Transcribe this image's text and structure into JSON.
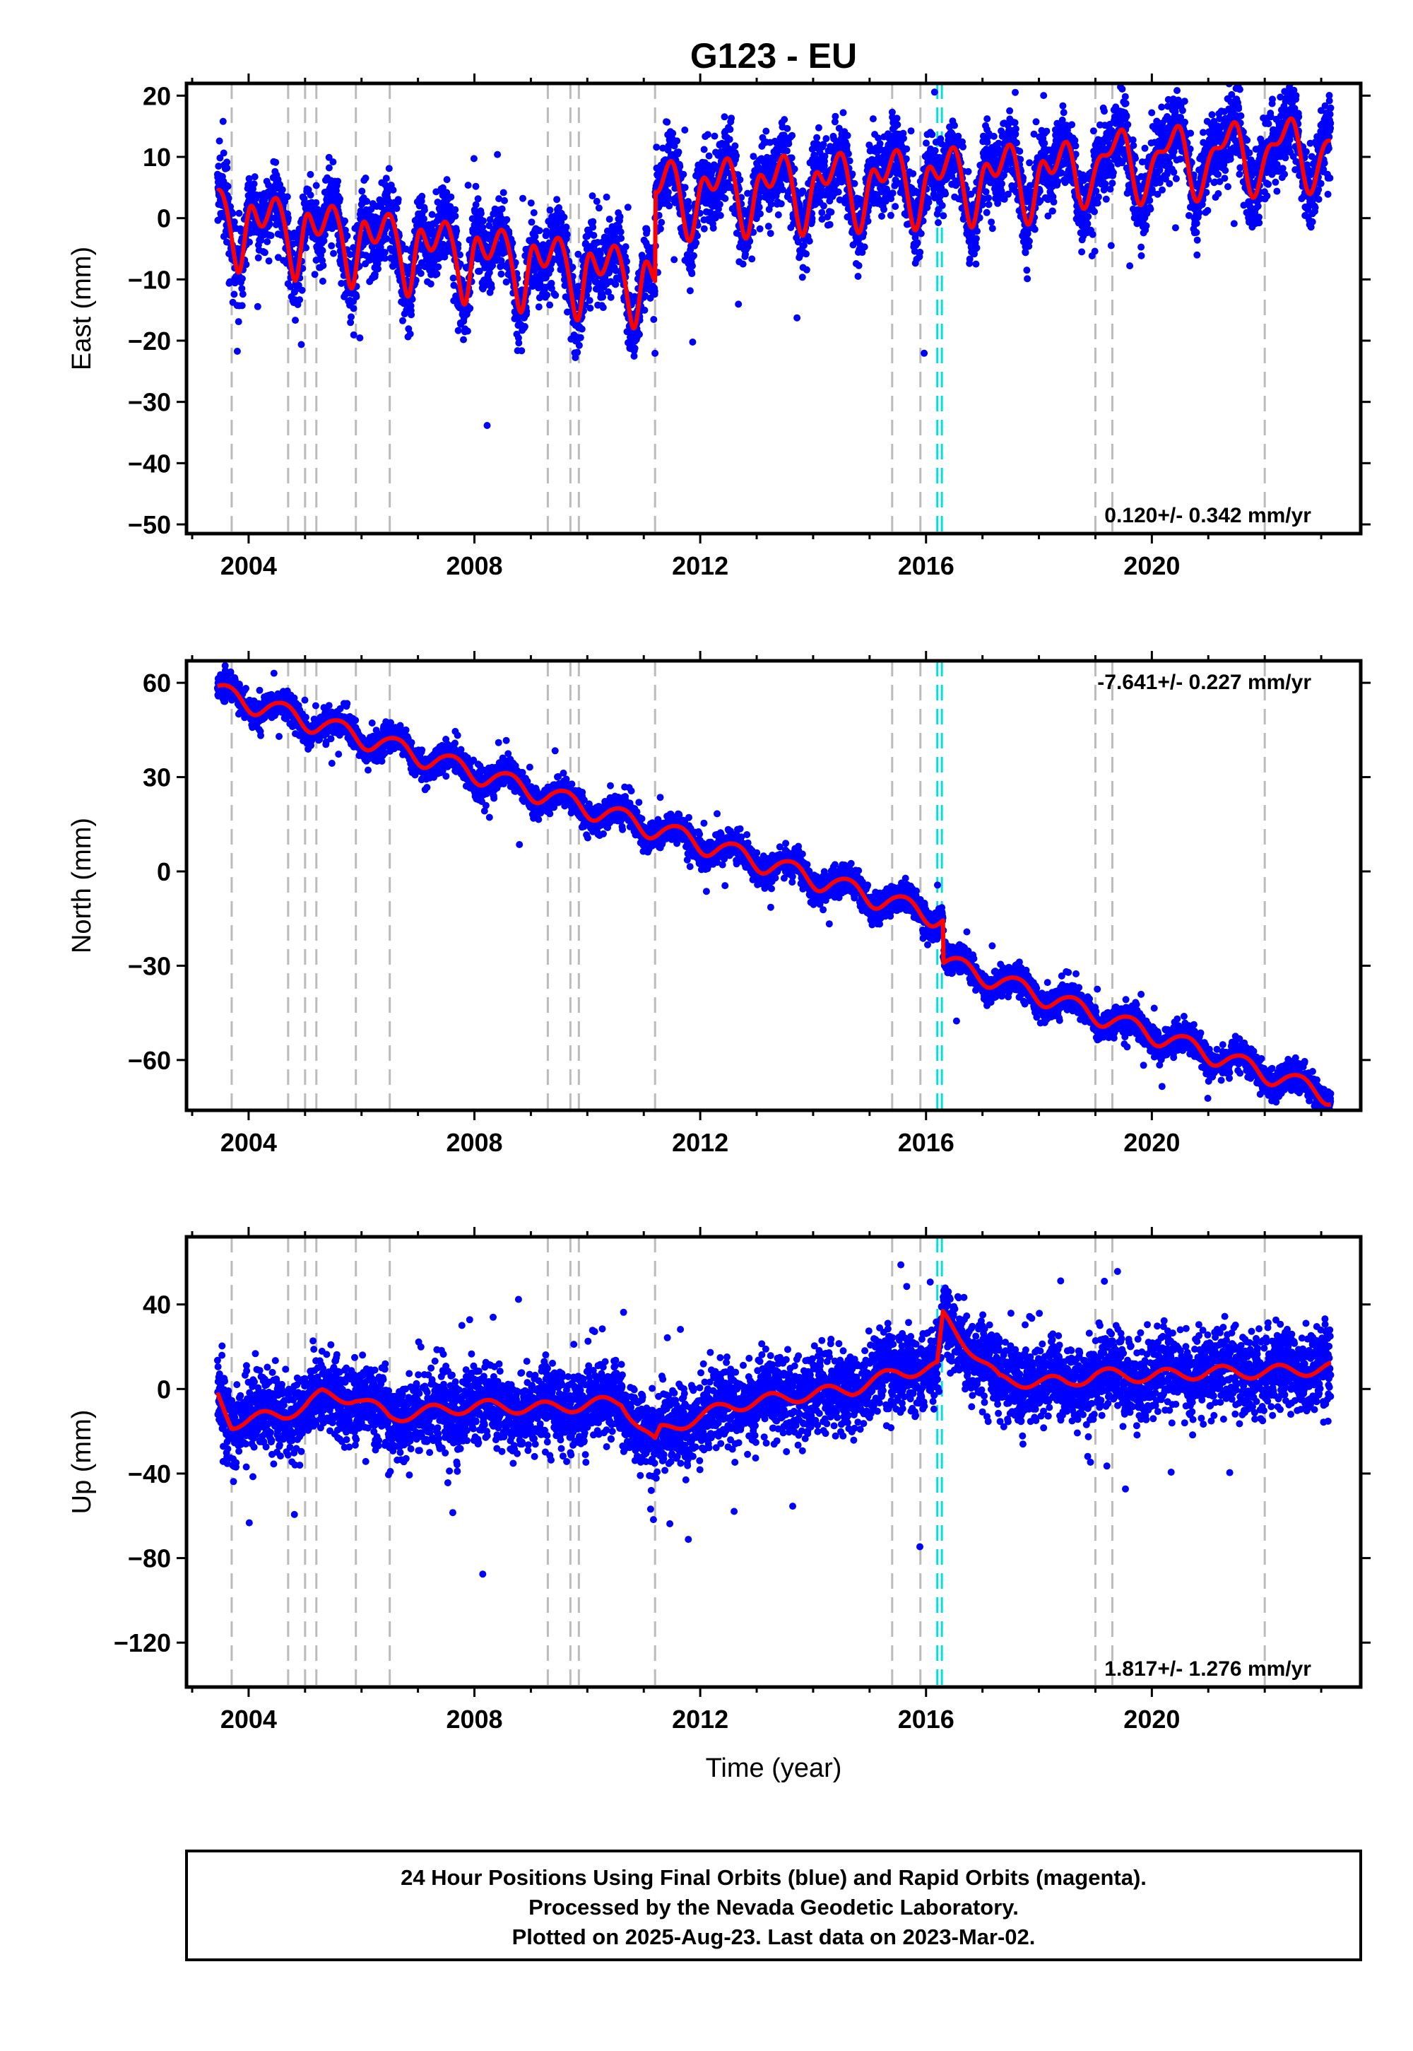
{
  "title": "G123 - EU",
  "xlabel": "Time (year)",
  "caption": [
    "24 Hour Positions Using Final Orbits (blue) and Rapid Orbits (magenta).",
    "Processed by the Nevada Geodetic Laboratory.",
    "Plotted on 2025-Aug-23. Last data on 2023-Mar-02."
  ],
  "colors": {
    "points": "#0000ff",
    "model": "#ff0000",
    "equipment_change": "#bbbbbb",
    "earthquake": "#00e0e0"
  },
  "chart_data": [
    {
      "type": "scatter",
      "name": "east",
      "ylabel": "East (mm)",
      "rate": "0.120+/- 0.342 mm/yr",
      "xlim": [
        2002.9,
        2023.7
      ],
      "ylim": [
        -51.5,
        22
      ],
      "xticks": [
        2004,
        2008,
        2012,
        2016,
        2020
      ],
      "yticks": [
        20,
        10,
        0,
        -10,
        -20,
        -30,
        -40,
        -50
      ],
      "grid": false,
      "model": {
        "period_end": 2011.2,
        "segments": [
          {
            "start": 2003.4,
            "end": 2011.2,
            "offset": -0.5,
            "rate": -1.3,
            "annual_amp": 4.5,
            "annual_phase": 0.35,
            "semi_amp": 2.5,
            "semi_phase": 1.8,
            "sharp": 5.5
          },
          {
            "start": 2011.2,
            "end": 2018.7,
            "offset": 4.0,
            "rate": 0.45,
            "annual_amp": 4.5,
            "annual_phase": 0.35,
            "semi_amp": 2.5,
            "semi_phase": 1.8,
            "sharp": 3.5
          },
          {
            "start": 2018.7,
            "end": 2023.2,
            "offset": 9.5,
            "rate": 0.6,
            "annual_amp": 4.5,
            "annual_phase": 0.35,
            "semi_amp": 2.0,
            "semi_phase": 1.8,
            "sharp": 2.0
          }
        ],
        "scatter_sigma": 3.0
      }
    },
    {
      "type": "scatter",
      "name": "north",
      "ylabel": "North (mm)",
      "rate": "-7.641+/- 0.227 mm/yr",
      "xlim": [
        2002.9,
        2023.7
      ],
      "ylim": [
        -76,
        67
      ],
      "xticks": [
        2004,
        2008,
        2012,
        2016,
        2020
      ],
      "yticks": [
        60,
        30,
        0,
        -30,
        -60
      ],
      "grid": false,
      "model": {
        "segments": [
          {
            "start": 2003.4,
            "end": 2016.3,
            "offset": 58,
            "rate": -5.6,
            "annual_amp": 3.0,
            "annual_phase": 0.6,
            "semi_amp": 0.5,
            "semi_phase": 0.0,
            "sharp": 2.0
          },
          {
            "start": 2016.3,
            "end": 2023.2,
            "offset": -28,
            "rate": -6.2,
            "annual_amp": 2.8,
            "annual_phase": 0.6,
            "semi_amp": 0.5,
            "semi_phase": 0.0,
            "sharp": 2.0
          }
        ],
        "scatter_sigma": 2.2
      }
    },
    {
      "type": "scatter",
      "name": "up",
      "ylabel": "Up (mm)",
      "rate": "1.817+/- 1.276 mm/yr",
      "xlim": [
        2002.9,
        2023.7
      ],
      "ylim": [
        -141,
        72
      ],
      "xticks": [
        2004,
        2008,
        2012,
        2016,
        2020
      ],
      "yticks": [
        40,
        0,
        -40,
        -80,
        -120
      ],
      "grid": false,
      "model": {
        "steps": [
          [
            2003.4,
            0
          ],
          [
            2003.7,
            -16
          ],
          [
            2004.6,
            -12
          ],
          [
            2005.0,
            -8
          ],
          [
            2005.3,
            -3
          ],
          [
            2005.9,
            -4
          ],
          [
            2006.5,
            -13
          ],
          [
            2008.0,
            -8
          ],
          [
            2009.3,
            -9
          ],
          [
            2010.6,
            -6
          ],
          [
            2011.2,
            -26
          ],
          [
            2011.3,
            -20
          ],
          [
            2012.5,
            -8
          ],
          [
            2013.5,
            -4
          ],
          [
            2014.7,
            0
          ],
          [
            2015.5,
            8
          ],
          [
            2016.2,
            10
          ],
          [
            2016.3,
            34
          ],
          [
            2017.3,
            4
          ],
          [
            2018.5,
            3
          ],
          [
            2019.0,
            7
          ],
          [
            2020.0,
            6
          ],
          [
            2021.0,
            8
          ],
          [
            2022.0,
            8
          ],
          [
            2023.2,
            10
          ]
        ],
        "annual_amp": 3.0,
        "scatter_sigma": 9.0
      }
    }
  ],
  "equipment_changes": [
    2003.7,
    2004.7,
    2005.0,
    2005.2,
    2005.9,
    2006.5,
    2009.3,
    2009.7,
    2009.85,
    2011.2,
    2015.4,
    2015.9,
    2019.0,
    2019.3,
    2022.0
  ],
  "earthquakes": [
    2016.2,
    2016.28
  ]
}
